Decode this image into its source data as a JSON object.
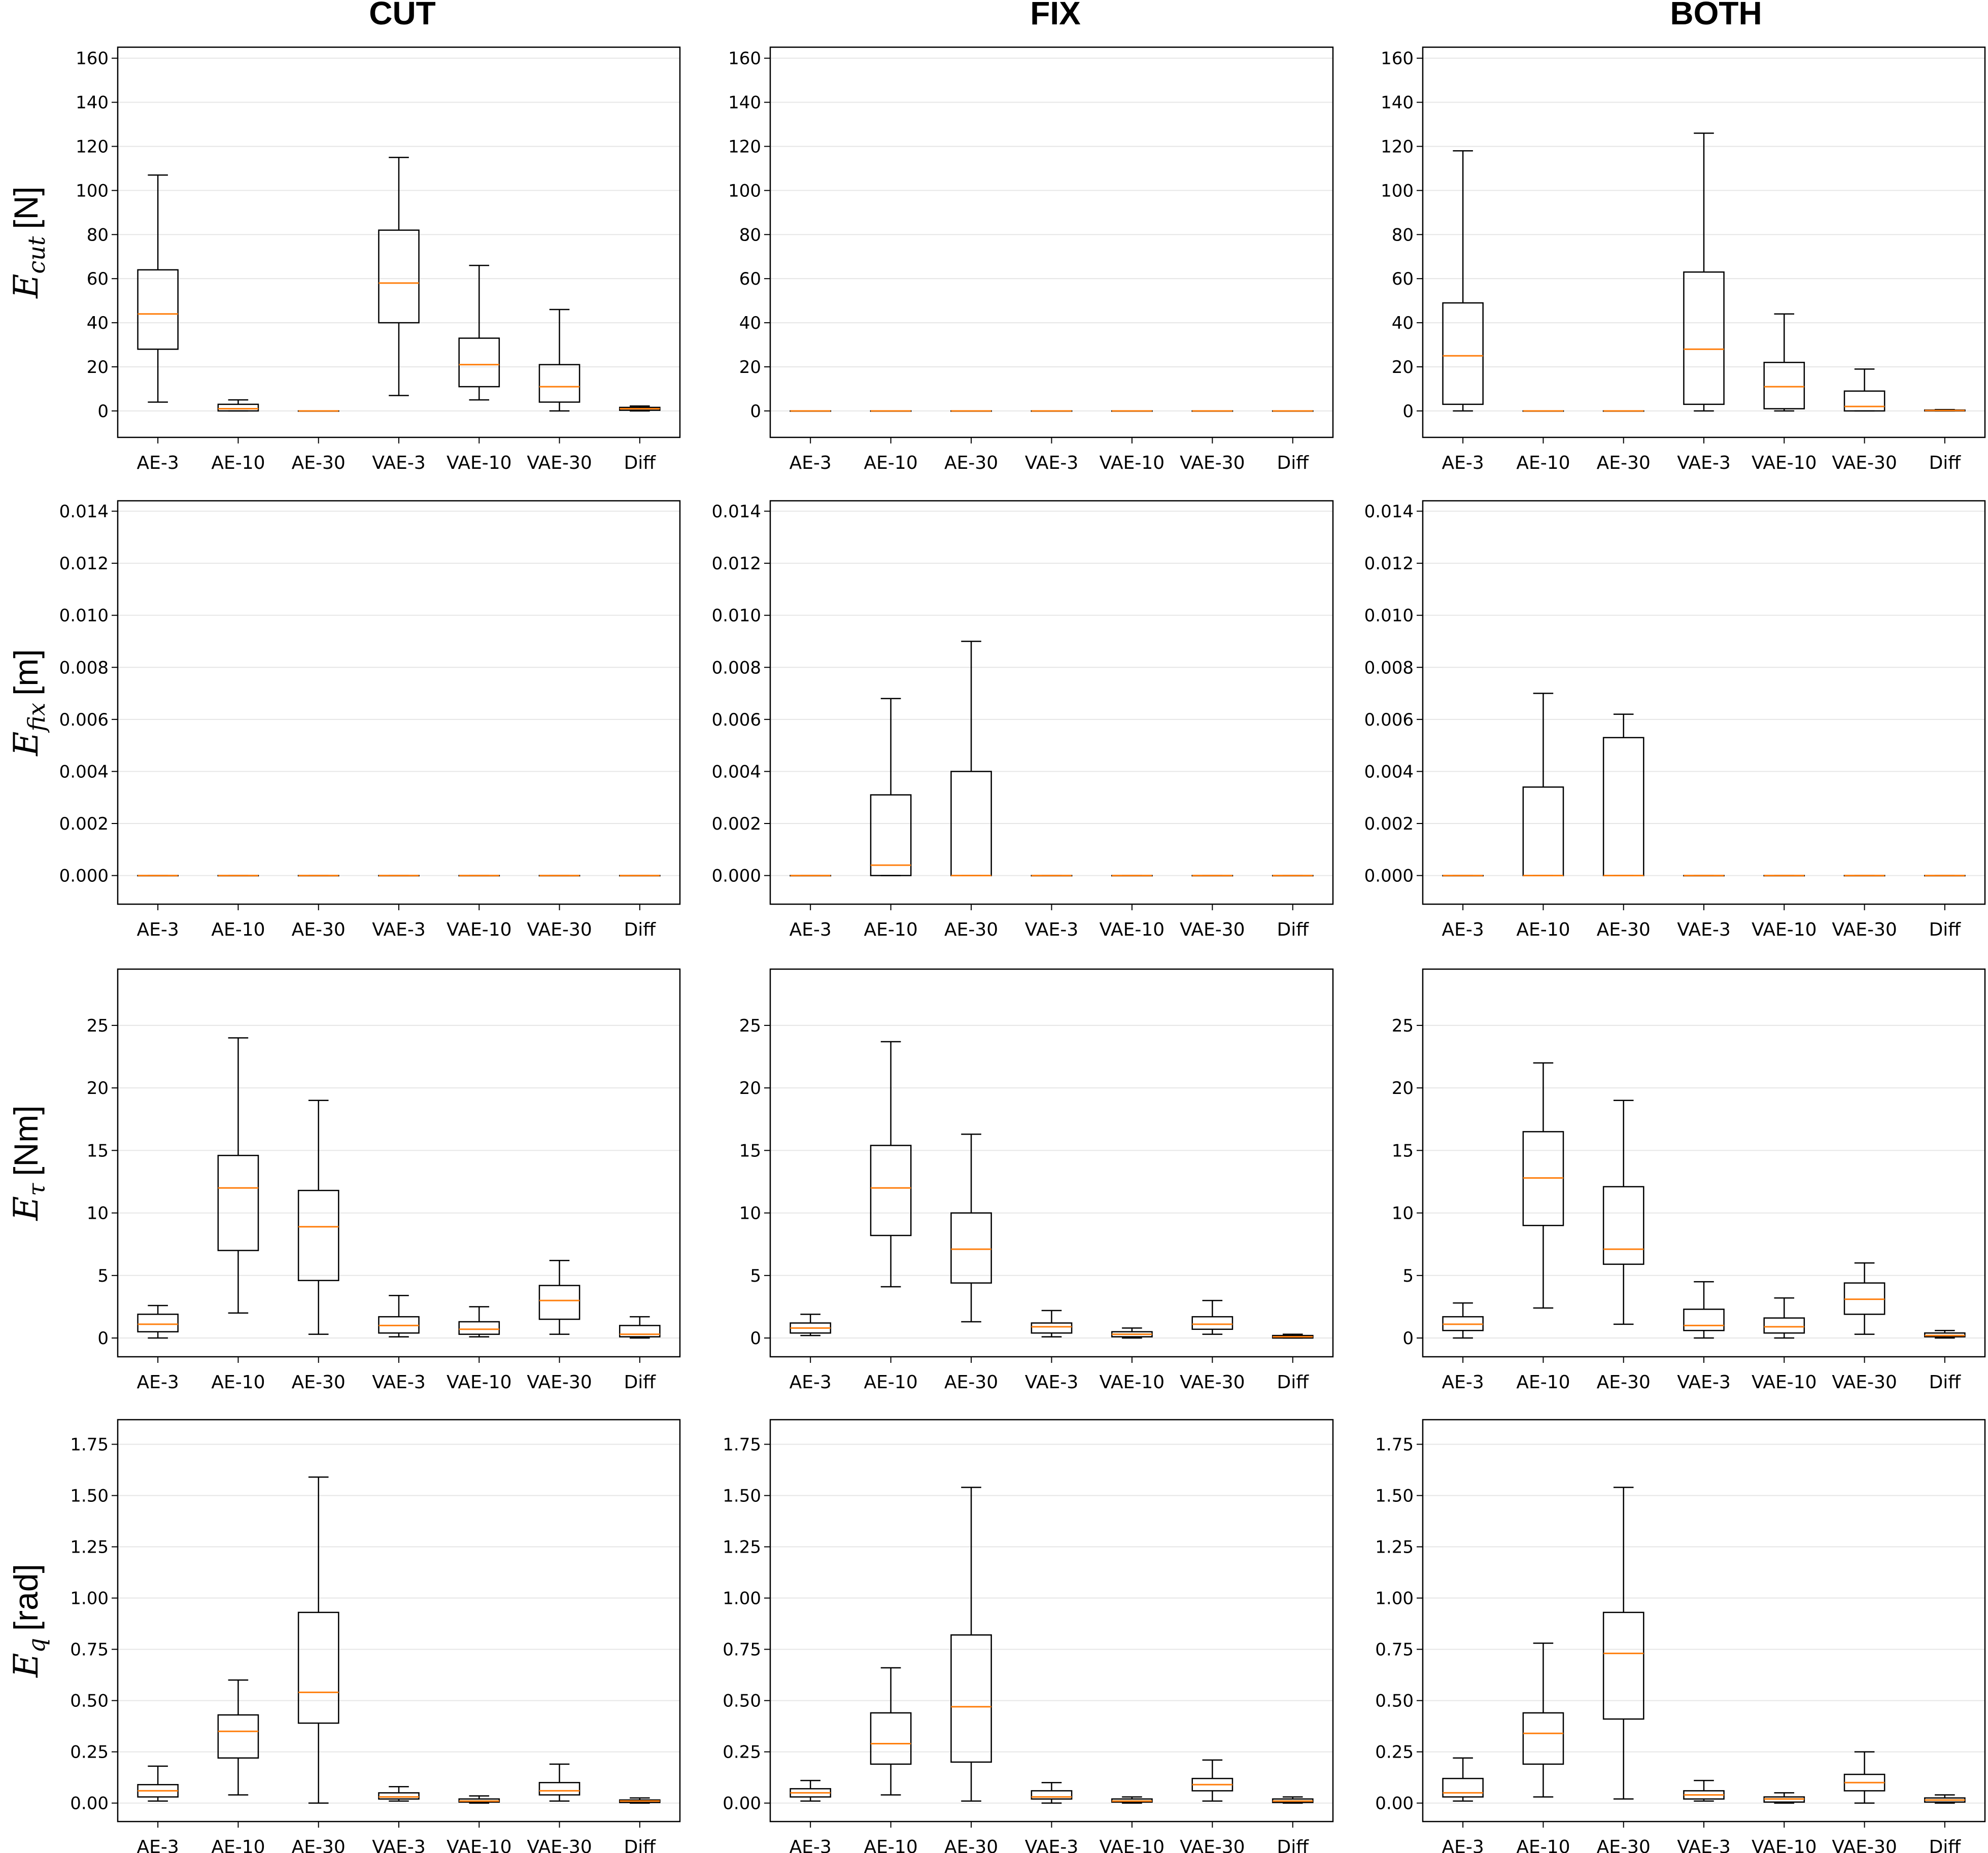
{
  "figure": {
    "column_titles": [
      "CUT",
      "FIX",
      "BOTH"
    ],
    "row_labels": [
      {
        "symbol": "E",
        "sub": "cut",
        "unit": "[N]"
      },
      {
        "symbol": "E",
        "sub": "fix",
        "unit": "[m]"
      },
      {
        "symbol": "E",
        "sub": "τ",
        "unit": "[Nm]"
      },
      {
        "symbol": "E",
        "sub": "q",
        "unit": "[rad]"
      }
    ],
    "colors": {
      "box": "#000000",
      "median": "#ff7f0e",
      "grid": "#e6e6e6"
    }
  },
  "chart_data": [
    {
      "type": "box",
      "row": 0,
      "col": 0,
      "ylim": [
        -12,
        165
      ],
      "yticks": [
        0,
        20,
        40,
        60,
        80,
        100,
        120,
        140,
        160
      ],
      "ytick_decimals": 0,
      "grid": true,
      "categories": [
        "AE-3",
        "AE-10",
        "AE-30",
        "VAE-3",
        "VAE-10",
        "VAE-30",
        "Diff"
      ],
      "boxes": [
        {
          "whislo": 4,
          "q1": 28,
          "med": 44,
          "q3": 64,
          "whishi": 107
        },
        {
          "whislo": 0,
          "q1": 0,
          "med": 1,
          "q3": 3,
          "whishi": 5
        },
        {
          "whislo": 0,
          "q1": 0,
          "med": 0,
          "q3": 0,
          "whishi": 0
        },
        {
          "whislo": 7,
          "q1": 40,
          "med": 58,
          "q3": 82,
          "whishi": 115
        },
        {
          "whislo": 5,
          "q1": 11,
          "med": 21,
          "q3": 33,
          "whishi": 66
        },
        {
          "whislo": 0,
          "q1": 4,
          "med": 11,
          "q3": 21,
          "whishi": 46
        },
        {
          "whislo": 0,
          "q1": 0.3,
          "med": 1,
          "q3": 1.6,
          "whishi": 2.2
        }
      ]
    },
    {
      "type": "box",
      "row": 0,
      "col": 1,
      "ylim": [
        -12,
        165
      ],
      "yticks": [
        0,
        20,
        40,
        60,
        80,
        100,
        120,
        140,
        160
      ],
      "ytick_decimals": 0,
      "grid": true,
      "categories": [
        "AE-3",
        "AE-10",
        "AE-30",
        "VAE-3",
        "VAE-10",
        "VAE-30",
        "Diff"
      ],
      "boxes": [
        {
          "whislo": 0,
          "q1": 0,
          "med": 0,
          "q3": 0,
          "whishi": 0
        },
        {
          "whislo": 0,
          "q1": 0,
          "med": 0,
          "q3": 0,
          "whishi": 0
        },
        {
          "whislo": 0,
          "q1": 0,
          "med": 0,
          "q3": 0,
          "whishi": 0
        },
        {
          "whislo": 0,
          "q1": 0,
          "med": 0,
          "q3": 0,
          "whishi": 0
        },
        {
          "whislo": 0,
          "q1": 0,
          "med": 0,
          "q3": 0,
          "whishi": 0
        },
        {
          "whislo": 0,
          "q1": 0,
          "med": 0,
          "q3": 0,
          "whishi": 0
        },
        {
          "whislo": 0,
          "q1": 0,
          "med": 0,
          "q3": 0,
          "whishi": 0
        }
      ]
    },
    {
      "type": "box",
      "row": 0,
      "col": 2,
      "ylim": [
        -12,
        165
      ],
      "yticks": [
        0,
        20,
        40,
        60,
        80,
        100,
        120,
        140,
        160
      ],
      "ytick_decimals": 0,
      "grid": true,
      "categories": [
        "AE-3",
        "AE-10",
        "AE-30",
        "VAE-3",
        "VAE-10",
        "VAE-30",
        "Diff"
      ],
      "boxes": [
        {
          "whislo": 0,
          "q1": 3,
          "med": 25,
          "q3": 49,
          "whishi": 118
        },
        {
          "whislo": 0,
          "q1": 0,
          "med": 0,
          "q3": 0,
          "whishi": 0
        },
        {
          "whislo": 0,
          "q1": 0,
          "med": 0,
          "q3": 0,
          "whishi": 0
        },
        {
          "whislo": 0,
          "q1": 3,
          "med": 28,
          "q3": 63,
          "whishi": 126
        },
        {
          "whislo": 0,
          "q1": 1,
          "med": 11,
          "q3": 22,
          "whishi": 44
        },
        {
          "whislo": 0,
          "q1": 0,
          "med": 2,
          "q3": 9,
          "whishi": 19
        },
        {
          "whislo": 0,
          "q1": 0,
          "med": 0.2,
          "q3": 0.4,
          "whishi": 0.6
        }
      ]
    },
    {
      "type": "box",
      "row": 1,
      "col": 0,
      "ylim": [
        -0.0011,
        0.0144
      ],
      "yticks": [
        0,
        0.002,
        0.004,
        0.006,
        0.008,
        0.01,
        0.012,
        0.014
      ],
      "ytick_decimals": 3,
      "grid": true,
      "categories": [
        "AE-3",
        "AE-10",
        "AE-30",
        "VAE-3",
        "VAE-10",
        "VAE-30",
        "Diff"
      ],
      "boxes": [
        {
          "whislo": 0,
          "q1": 0,
          "med": 0,
          "q3": 0,
          "whishi": 0
        },
        {
          "whislo": 0,
          "q1": 0,
          "med": 0,
          "q3": 0,
          "whishi": 0
        },
        {
          "whislo": 0,
          "q1": 0,
          "med": 0,
          "q3": 0,
          "whishi": 0
        },
        {
          "whislo": 0,
          "q1": 0,
          "med": 0,
          "q3": 0,
          "whishi": 0
        },
        {
          "whislo": 0,
          "q1": 0,
          "med": 0,
          "q3": 0,
          "whishi": 0
        },
        {
          "whislo": 0,
          "q1": 0,
          "med": 0,
          "q3": 0,
          "whishi": 0
        },
        {
          "whislo": 0,
          "q1": 0,
          "med": 0,
          "q3": 0,
          "whishi": 0
        }
      ]
    },
    {
      "type": "box",
      "row": 1,
      "col": 1,
      "ylim": [
        -0.0011,
        0.0144
      ],
      "yticks": [
        0,
        0.002,
        0.004,
        0.006,
        0.008,
        0.01,
        0.012,
        0.014
      ],
      "ytick_decimals": 3,
      "grid": true,
      "categories": [
        "AE-3",
        "AE-10",
        "AE-30",
        "VAE-3",
        "VAE-10",
        "VAE-30",
        "Diff"
      ],
      "boxes": [
        {
          "whislo": 0,
          "q1": 0,
          "med": 0,
          "q3": 0,
          "whishi": 0
        },
        {
          "whislo": 0,
          "q1": 0,
          "med": 0.0004,
          "q3": 0.0031,
          "whishi": 0.0068
        },
        {
          "whislo": 0,
          "q1": 0,
          "med": 0,
          "q3": 0.004,
          "whishi": 0.009
        },
        {
          "whislo": 0,
          "q1": 0,
          "med": 0,
          "q3": 0,
          "whishi": 0
        },
        {
          "whislo": 0,
          "q1": 0,
          "med": 0,
          "q3": 0,
          "whishi": 0
        },
        {
          "whislo": 0,
          "q1": 0,
          "med": 0,
          "q3": 0,
          "whishi": 0
        },
        {
          "whislo": 0,
          "q1": 0,
          "med": 0,
          "q3": 0,
          "whishi": 0
        }
      ]
    },
    {
      "type": "box",
      "row": 1,
      "col": 2,
      "ylim": [
        -0.0011,
        0.0144
      ],
      "yticks": [
        0,
        0.002,
        0.004,
        0.006,
        0.008,
        0.01,
        0.012,
        0.014
      ],
      "ytick_decimals": 3,
      "grid": true,
      "categories": [
        "AE-3",
        "AE-10",
        "AE-30",
        "VAE-3",
        "VAE-10",
        "VAE-30",
        "Diff"
      ],
      "boxes": [
        {
          "whislo": 0,
          "q1": 0,
          "med": 0,
          "q3": 0,
          "whishi": 0
        },
        {
          "whislo": 0,
          "q1": 0,
          "med": 0,
          "q3": 0.0034,
          "whishi": 0.007
        },
        {
          "whislo": 0,
          "q1": 0,
          "med": 0,
          "q3": 0.0053,
          "whishi": 0.0062
        },
        {
          "whislo": 0,
          "q1": 0,
          "med": 0,
          "q3": 0,
          "whishi": 0
        },
        {
          "whislo": 0,
          "q1": 0,
          "med": 0,
          "q3": 0,
          "whishi": 0
        },
        {
          "whislo": 0,
          "q1": 0,
          "med": 0,
          "q3": 0,
          "whishi": 0
        },
        {
          "whislo": 0,
          "q1": 0,
          "med": 0,
          "q3": 0,
          "whishi": 0
        }
      ]
    },
    {
      "type": "box",
      "row": 2,
      "col": 0,
      "ylim": [
        -1.5,
        29.5
      ],
      "yticks": [
        0,
        5,
        10,
        15,
        20,
        25
      ],
      "ytick_decimals": 0,
      "grid": true,
      "categories": [
        "AE-3",
        "AE-10",
        "AE-30",
        "VAE-3",
        "VAE-10",
        "VAE-30",
        "Diff"
      ],
      "boxes": [
        {
          "whislo": 0,
          "q1": 0.5,
          "med": 1.1,
          "q3": 1.9,
          "whishi": 2.6
        },
        {
          "whislo": 2,
          "q1": 7,
          "med": 12,
          "q3": 14.6,
          "whishi": 24
        },
        {
          "whislo": 0.3,
          "q1": 4.6,
          "med": 8.9,
          "q3": 11.8,
          "whishi": 19
        },
        {
          "whislo": 0.1,
          "q1": 0.4,
          "med": 1,
          "q3": 1.7,
          "whishi": 3.4
        },
        {
          "whislo": 0.1,
          "q1": 0.3,
          "med": 0.7,
          "q3": 1.3,
          "whishi": 2.5
        },
        {
          "whislo": 0.3,
          "q1": 1.5,
          "med": 3,
          "q3": 4.2,
          "whishi": 6.2
        },
        {
          "whislo": 0,
          "q1": 0.1,
          "med": 0.3,
          "q3": 1,
          "whishi": 1.7
        }
      ]
    },
    {
      "type": "box",
      "row": 2,
      "col": 1,
      "ylim": [
        -1.5,
        29.5
      ],
      "yticks": [
        0,
        5,
        10,
        15,
        20,
        25
      ],
      "ytick_decimals": 0,
      "grid": true,
      "categories": [
        "AE-3",
        "AE-10",
        "AE-30",
        "VAE-3",
        "VAE-10",
        "VAE-30",
        "Diff"
      ],
      "boxes": [
        {
          "whislo": 0.2,
          "q1": 0.4,
          "med": 0.8,
          "q3": 1.2,
          "whishi": 1.9
        },
        {
          "whislo": 4.1,
          "q1": 8.2,
          "med": 12,
          "q3": 15.4,
          "whishi": 23.7
        },
        {
          "whislo": 1.3,
          "q1": 4.4,
          "med": 7.1,
          "q3": 10,
          "whishi": 16.3
        },
        {
          "whislo": 0.1,
          "q1": 0.4,
          "med": 0.9,
          "q3": 1.2,
          "whishi": 2.2
        },
        {
          "whislo": 0,
          "q1": 0.1,
          "med": 0.3,
          "q3": 0.5,
          "whishi": 0.8
        },
        {
          "whislo": 0.3,
          "q1": 0.7,
          "med": 1.1,
          "q3": 1.7,
          "whishi": 3
        },
        {
          "whislo": 0,
          "q1": 0,
          "med": 0.1,
          "q3": 0.2,
          "whishi": 0.3
        }
      ]
    },
    {
      "type": "box",
      "row": 2,
      "col": 2,
      "ylim": [
        -1.5,
        29.5
      ],
      "yticks": [
        0,
        5,
        10,
        15,
        20,
        25
      ],
      "ytick_decimals": 0,
      "grid": true,
      "categories": [
        "AE-3",
        "AE-10",
        "AE-30",
        "VAE-3",
        "VAE-10",
        "VAE-30",
        "Diff"
      ],
      "boxes": [
        {
          "whislo": 0,
          "q1": 0.6,
          "med": 1.1,
          "q3": 1.7,
          "whishi": 2.8
        },
        {
          "whislo": 2.4,
          "q1": 9,
          "med": 12.8,
          "q3": 16.5,
          "whishi": 22
        },
        {
          "whislo": 1.1,
          "q1": 5.9,
          "med": 7.1,
          "q3": 12.1,
          "whishi": 19
        },
        {
          "whislo": 0,
          "q1": 0.6,
          "med": 1,
          "q3": 2.3,
          "whishi": 4.5
        },
        {
          "whislo": 0,
          "q1": 0.4,
          "med": 0.9,
          "q3": 1.6,
          "whishi": 3.2
        },
        {
          "whislo": 0.3,
          "q1": 1.9,
          "med": 3.1,
          "q3": 4.4,
          "whishi": 6
        },
        {
          "whislo": 0,
          "q1": 0.1,
          "med": 0.2,
          "q3": 0.4,
          "whishi": 0.6
        }
      ]
    },
    {
      "type": "box",
      "row": 3,
      "col": 0,
      "ylim": [
        -0.09,
        1.87
      ],
      "yticks": [
        0,
        0.25,
        0.5,
        0.75,
        1,
        1.25,
        1.5,
        1.75
      ],
      "ytick_decimals": 2,
      "grid": true,
      "categories": [
        "AE-3",
        "AE-10",
        "AE-30",
        "VAE-3",
        "VAE-10",
        "VAE-30",
        "Diff"
      ],
      "boxes": [
        {
          "whislo": 0.01,
          "q1": 0.03,
          "med": 0.06,
          "q3": 0.09,
          "whishi": 0.18
        },
        {
          "whislo": 0.04,
          "q1": 0.22,
          "med": 0.35,
          "q3": 0.43,
          "whishi": 0.6
        },
        {
          "whislo": 0,
          "q1": 0.39,
          "med": 0.54,
          "q3": 0.93,
          "whishi": 1.59
        },
        {
          "whislo": 0.01,
          "q1": 0.02,
          "med": 0.03,
          "q3": 0.05,
          "whishi": 0.08
        },
        {
          "whislo": 0,
          "q1": 0.005,
          "med": 0.01,
          "q3": 0.02,
          "whishi": 0.035
        },
        {
          "whislo": 0.01,
          "q1": 0.04,
          "med": 0.06,
          "q3": 0.1,
          "whishi": 0.19
        },
        {
          "whislo": 0,
          "q1": 0.003,
          "med": 0.01,
          "q3": 0.015,
          "whishi": 0.025
        }
      ]
    },
    {
      "type": "box",
      "row": 3,
      "col": 1,
      "ylim": [
        -0.09,
        1.87
      ],
      "yticks": [
        0,
        0.25,
        0.5,
        0.75,
        1,
        1.25,
        1.5,
        1.75
      ],
      "ytick_decimals": 2,
      "grid": true,
      "categories": [
        "AE-3",
        "AE-10",
        "AE-30",
        "VAE-3",
        "VAE-10",
        "VAE-30",
        "Diff"
      ],
      "boxes": [
        {
          "whislo": 0.01,
          "q1": 0.03,
          "med": 0.05,
          "q3": 0.07,
          "whishi": 0.11
        },
        {
          "whislo": 0.04,
          "q1": 0.19,
          "med": 0.29,
          "q3": 0.44,
          "whishi": 0.66
        },
        {
          "whislo": 0.01,
          "q1": 0.2,
          "med": 0.47,
          "q3": 0.82,
          "whishi": 1.54
        },
        {
          "whislo": 0,
          "q1": 0.02,
          "med": 0.03,
          "q3": 0.06,
          "whishi": 0.1
        },
        {
          "whislo": 0,
          "q1": 0.005,
          "med": 0.01,
          "q3": 0.02,
          "whishi": 0.03
        },
        {
          "whislo": 0.01,
          "q1": 0.06,
          "med": 0.09,
          "q3": 0.12,
          "whishi": 0.21
        },
        {
          "whislo": 0,
          "q1": 0.003,
          "med": 0.01,
          "q3": 0.02,
          "whishi": 0.03
        }
      ]
    },
    {
      "type": "box",
      "row": 3,
      "col": 2,
      "ylim": [
        -0.09,
        1.87
      ],
      "yticks": [
        0,
        0.25,
        0.5,
        0.75,
        1,
        1.25,
        1.5,
        1.75
      ],
      "ytick_decimals": 2,
      "grid": true,
      "categories": [
        "AE-3",
        "AE-10",
        "AE-30",
        "VAE-3",
        "VAE-10",
        "VAE-30",
        "Diff"
      ],
      "boxes": [
        {
          "whislo": 0.01,
          "q1": 0.03,
          "med": 0.05,
          "q3": 0.12,
          "whishi": 0.22
        },
        {
          "whislo": 0.03,
          "q1": 0.19,
          "med": 0.34,
          "q3": 0.44,
          "whishi": 0.78
        },
        {
          "whislo": 0.02,
          "q1": 0.41,
          "med": 0.73,
          "q3": 0.93,
          "whishi": 1.54
        },
        {
          "whislo": 0.01,
          "q1": 0.02,
          "med": 0.04,
          "q3": 0.06,
          "whishi": 0.11
        },
        {
          "whislo": 0,
          "q1": 0.005,
          "med": 0.02,
          "q3": 0.03,
          "whishi": 0.05
        },
        {
          "whislo": 0,
          "q1": 0.06,
          "med": 0.1,
          "q3": 0.14,
          "whishi": 0.25
        },
        {
          "whislo": 0,
          "q1": 0.005,
          "med": 0.015,
          "q3": 0.025,
          "whishi": 0.04
        }
      ]
    }
  ]
}
